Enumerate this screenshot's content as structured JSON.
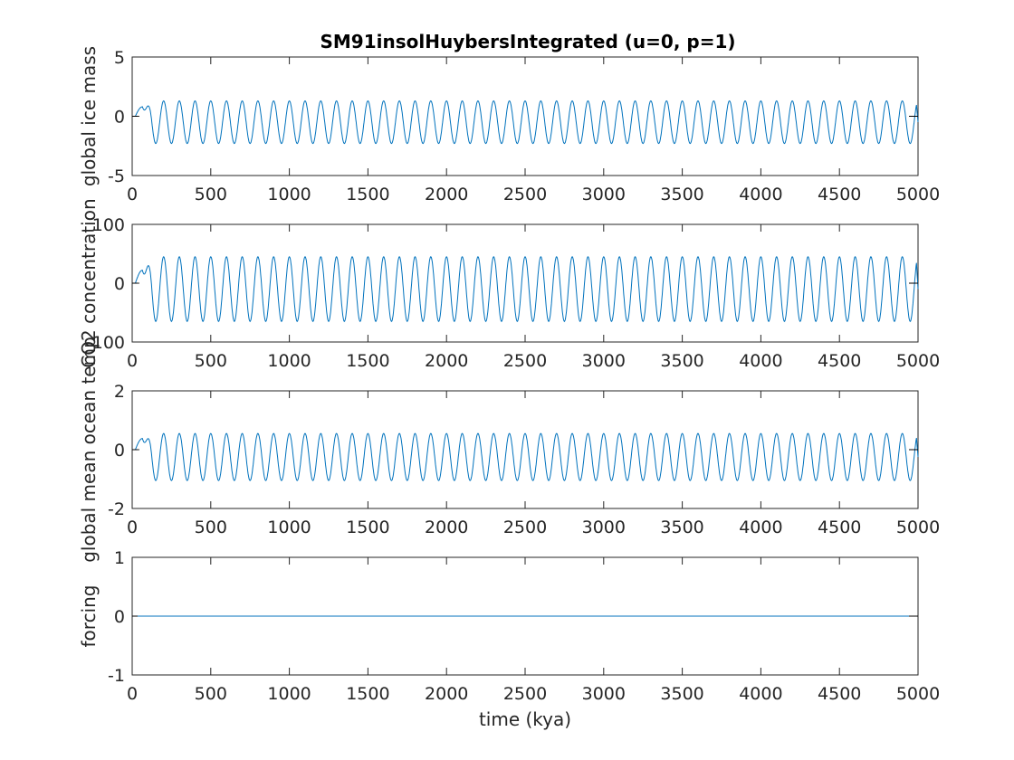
{
  "figure": {
    "title": "SM91insolHuybersIntegrated (u=0, p=1)",
    "xlabel": "time (kya)"
  },
  "chart_data": [
    {
      "type": "line",
      "ylabel": "global ice mass",
      "xlim": [
        0,
        5000
      ],
      "ylim": [
        -5,
        5
      ],
      "xticks": [
        0,
        500,
        1000,
        1500,
        2000,
        2500,
        3000,
        3500,
        4000,
        4500,
        5000
      ],
      "yticks": [
        -5,
        0,
        5
      ],
      "grid": false,
      "color": "#0072bd",
      "oscillation": {
        "period": 100,
        "peak": 1.3,
        "trough": -2.3,
        "initial_rise_peak": 0.8
      },
      "end_marker_value": 0,
      "series": [
        {
          "x_range": [
            0,
            5000
          ],
          "values_note_none": ""
        }
      ]
    },
    {
      "type": "line",
      "ylabel": "CO2 concentration",
      "xlim": [
        0,
        5000
      ],
      "ylim": [
        -100,
        100
      ],
      "xticks": [
        0,
        500,
        1000,
        1500,
        2000,
        2500,
        3000,
        3500,
        4000,
        4500,
        5000
      ],
      "yticks": [
        -100,
        0,
        100
      ],
      "grid": false,
      "color": "#0072bd",
      "oscillation": {
        "period": 100,
        "peak": 45,
        "trough": -65,
        "initial_rise_peak": 22
      },
      "end_marker_value": 0
    },
    {
      "type": "line",
      "ylabel": "global mean ocean temp",
      "xlim": [
        0,
        5000
      ],
      "ylim": [
        -2,
        2
      ],
      "xticks": [
        0,
        500,
        1000,
        1500,
        2000,
        2500,
        3000,
        3500,
        4000,
        4500,
        5000
      ],
      "yticks": [
        -2,
        0,
        2
      ],
      "grid": false,
      "color": "#0072bd",
      "oscillation": {
        "period": 100,
        "peak": 0.55,
        "trough": -1.05,
        "initial_rise_peak": 0.38
      },
      "end_marker_value": 0
    },
    {
      "type": "line",
      "ylabel": "forcing",
      "xlim": [
        0,
        5000
      ],
      "ylim": [
        -1,
        1
      ],
      "xticks": [
        0,
        500,
        1000,
        1500,
        2000,
        2500,
        3000,
        3500,
        4000,
        4500,
        5000
      ],
      "yticks": [
        -1,
        0,
        1
      ],
      "grid": false,
      "color": "#0072bd",
      "constant_value": 0,
      "end_marker_value": 0
    }
  ]
}
